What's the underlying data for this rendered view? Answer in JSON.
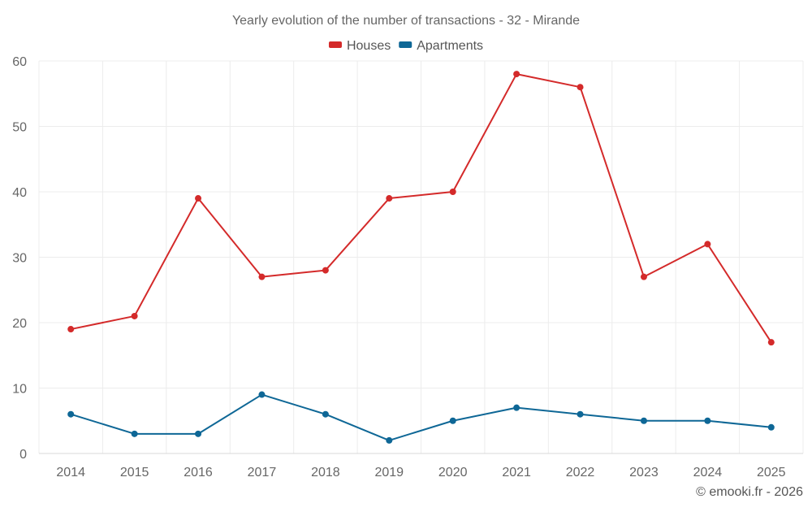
{
  "chart_data": {
    "type": "line",
    "title": "Yearly evolution of the number of transactions - 32 - Mirande",
    "xlabel": "",
    "ylabel": "",
    "categories": [
      "2014",
      "2015",
      "2016",
      "2017",
      "2018",
      "2019",
      "2020",
      "2021",
      "2022",
      "2023",
      "2024",
      "2025"
    ],
    "ylim": [
      0,
      60
    ],
    "yticks": [
      0,
      10,
      20,
      30,
      40,
      50,
      60
    ],
    "grid": true,
    "legend_position": "top-center",
    "series": [
      {
        "name": "Houses",
        "color": "#d42a2a",
        "values": [
          19,
          21,
          39,
          27,
          28,
          39,
          40,
          58,
          56,
          27,
          32,
          17
        ]
      },
      {
        "name": "Apartments",
        "color": "#0e6796",
        "values": [
          6,
          3,
          3,
          9,
          6,
          2,
          5,
          7,
          6,
          5,
          5,
          4
        ]
      }
    ]
  },
  "credit": "© emooki.fr - 2026"
}
